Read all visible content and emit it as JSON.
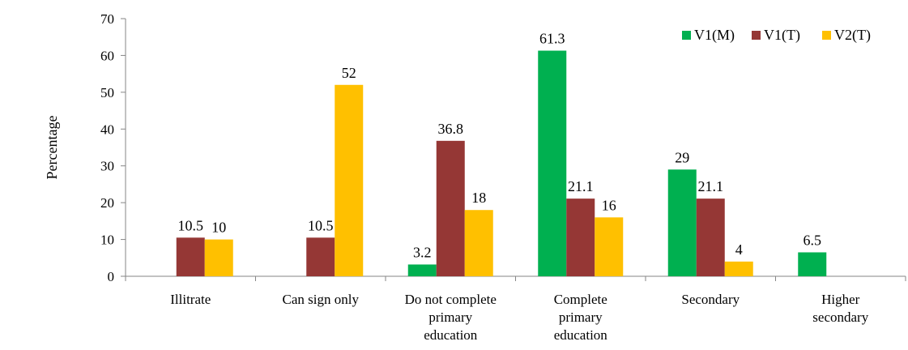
{
  "chart_data": {
    "type": "bar",
    "categories": [
      [
        "Illitrate"
      ],
      [
        "Can sign only"
      ],
      [
        "Do not complete",
        "primary",
        "education"
      ],
      [
        "Complete",
        "primary",
        "education"
      ],
      [
        "Secondary"
      ],
      [
        "Higher",
        "secondary"
      ]
    ],
    "series": [
      {
        "name": "V1(M)",
        "color": "#00b050",
        "values": [
          null,
          null,
          3.2,
          61.3,
          29,
          6.5
        ],
        "labels": [
          null,
          null,
          "3.2",
          "61.3",
          "29",
          "6.5"
        ]
      },
      {
        "name": "V1(T)",
        "color": "#953735",
        "values": [
          10.5,
          10.5,
          36.8,
          21.1,
          21.1,
          null
        ],
        "labels": [
          "10.5",
          "10.5",
          "36.8",
          "21.1",
          "21.1",
          null
        ]
      },
      {
        "name": "V2(T)",
        "color": "#ffc000",
        "values": [
          10,
          52,
          18,
          16,
          4,
          null
        ],
        "labels": [
          "10",
          "52",
          "18",
          "16",
          "4",
          null
        ]
      }
    ],
    "title": "",
    "xlabel": "",
    "ylabel": "Percentage",
    "ylim": [
      0,
      70
    ],
    "yticks": [
      "0",
      "10",
      "20",
      "30",
      "40",
      "50",
      "60",
      "70"
    ],
    "grid": false,
    "legend_position": "top-right"
  }
}
